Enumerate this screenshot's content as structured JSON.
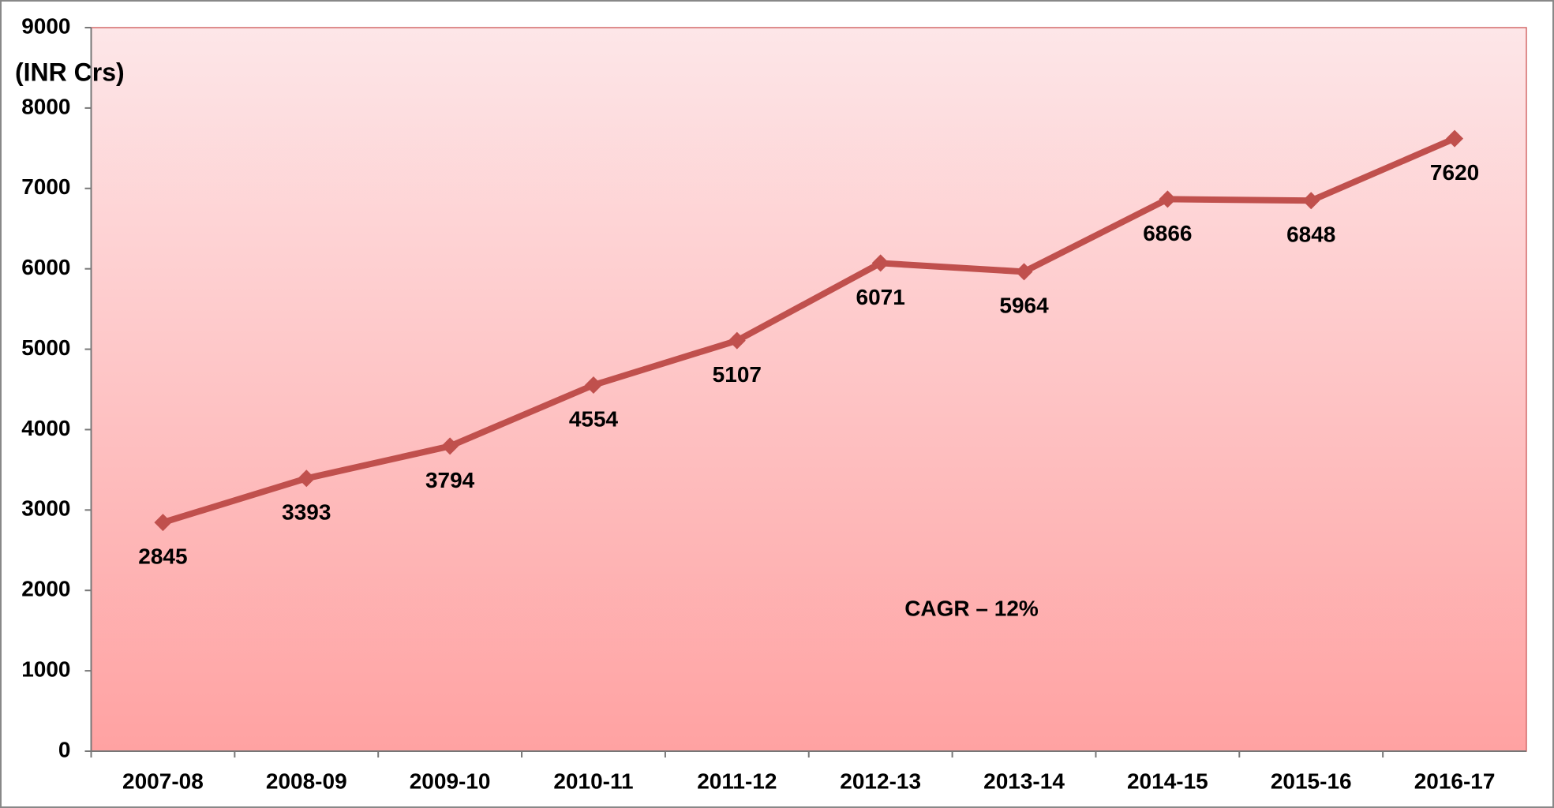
{
  "chart_data": {
    "type": "line",
    "y_label": "(INR Crs)",
    "annotation": "CAGR – 12%",
    "categories": [
      "2007-08",
      "2008-09",
      "2009-10",
      "2010-11",
      "2011-12",
      "2012-13",
      "2013-14",
      "2014-15",
      "2015-16",
      "2016-17"
    ],
    "series": [
      {
        "color": "#c0504d",
        "values": [
          2845,
          3393,
          3794,
          4554,
          5107,
          6071,
          5964,
          6866,
          6848,
          7620
        ]
      }
    ],
    "ylim": [
      0,
      9000
    ],
    "yticks": [
      0,
      1000,
      2000,
      3000,
      4000,
      5000,
      6000,
      7000,
      8000,
      9000
    ],
    "grid": false
  }
}
